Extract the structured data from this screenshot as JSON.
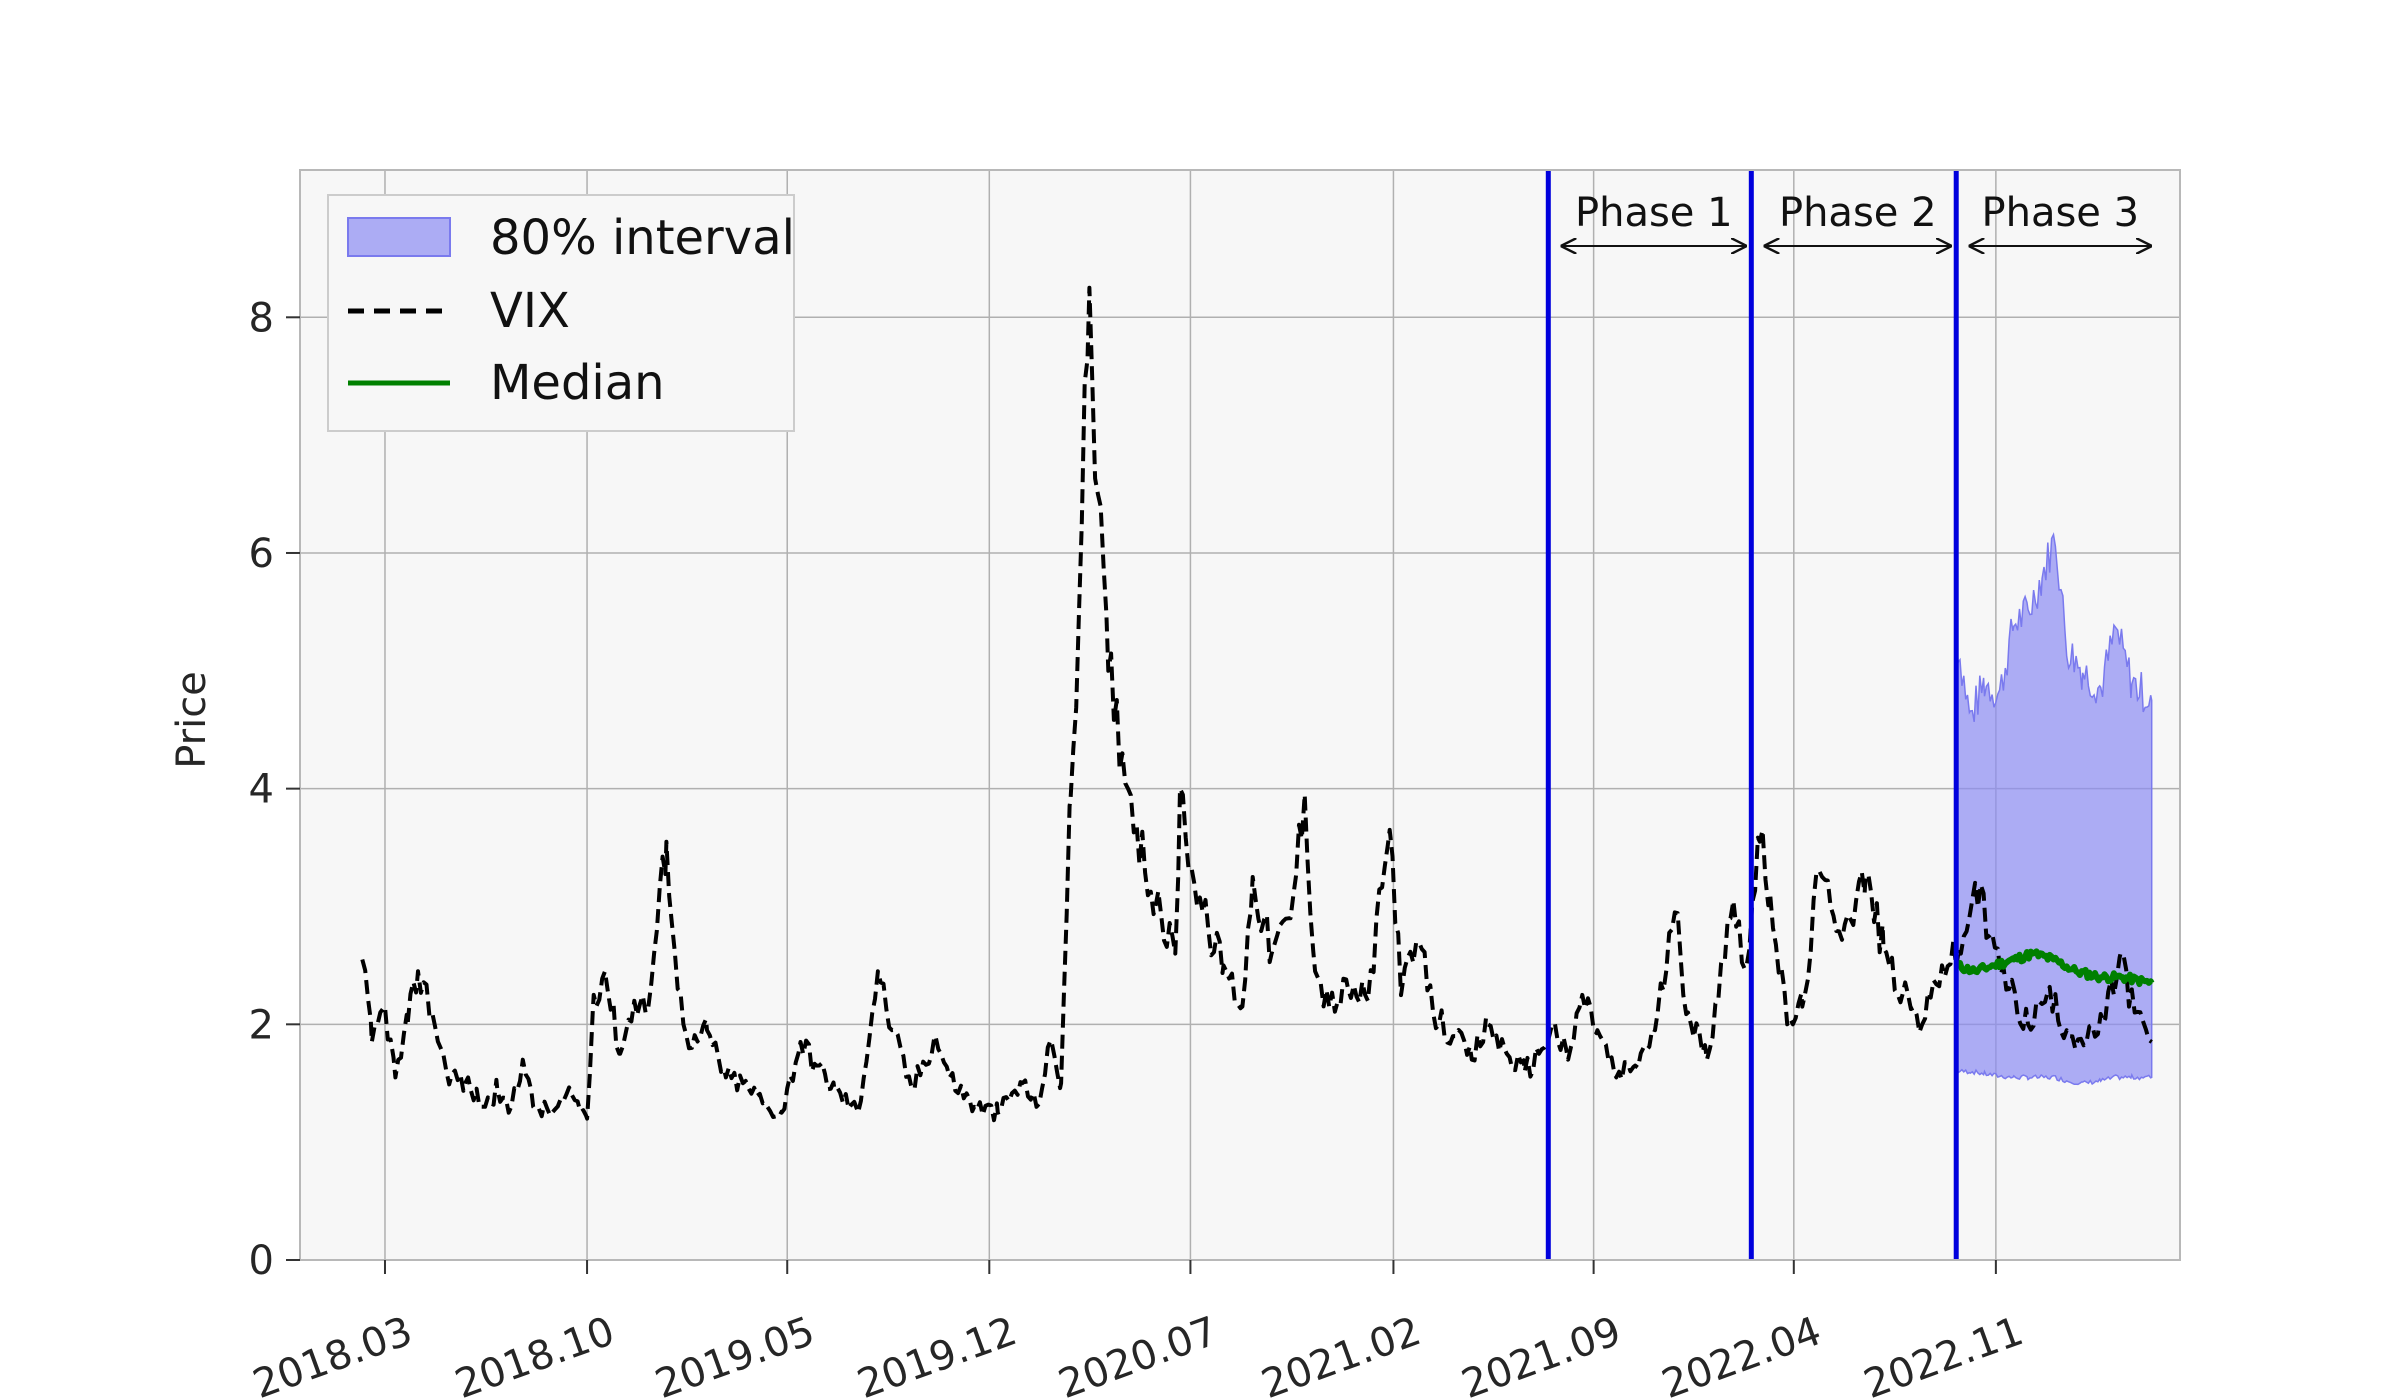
{
  "chart_data": {
    "type": "line",
    "title": "",
    "xlabel": "",
    "ylabel": "Price",
    "ylim": [
      0,
      9.25
    ],
    "xlim": [
      "2017-12-01",
      "2023-05-15"
    ],
    "grid": true,
    "legend_position": "top-left",
    "x_tick_labels": [
      "2018.03",
      "2018.10",
      "2019.05",
      "2019.12",
      "2020.07",
      "2021.02",
      "2021.09",
      "2022.04",
      "2022.11"
    ],
    "y_ticks": [
      0,
      2,
      4,
      6,
      8
    ],
    "legend": {
      "interval_label": "80% interval",
      "vix_label": "VIX",
      "median_label": "Median"
    },
    "phases": [
      {
        "label": "Phase 1",
        "start": "2021-07-15",
        "end": "2022-02-15"
      },
      {
        "label": "Phase 2",
        "start": "2022-02-15",
        "end": "2022-09-20"
      },
      {
        "label": "Phase 3",
        "start": "2022-09-20",
        "end": "2023-04-20"
      }
    ],
    "colors": {
      "background": "#f7f7f7",
      "vix": "#000000",
      "median": "#008000",
      "interval": "#8c8cf2",
      "phase_lines": "#0000dd",
      "grid": "#b0b0b0"
    },
    "series": [
      {
        "name": "VIX",
        "style": "dashed",
        "points": [
          [
            "2018-02-05",
            2.55
          ],
          [
            "2018-02-15",
            1.85
          ],
          [
            "2018-03-01",
            2.15
          ],
          [
            "2018-03-12",
            1.55
          ],
          [
            "2018-03-25",
            2.0
          ],
          [
            "2018-04-05",
            2.45
          ],
          [
            "2018-04-20",
            2.1
          ],
          [
            "2018-05-05",
            1.6
          ],
          [
            "2018-05-25",
            1.5
          ],
          [
            "2018-06-15",
            1.3
          ],
          [
            "2018-06-28",
            1.45
          ],
          [
            "2018-07-10",
            1.25
          ],
          [
            "2018-07-25",
            1.7
          ],
          [
            "2018-08-05",
            1.3
          ],
          [
            "2018-08-25",
            1.25
          ],
          [
            "2018-09-15",
            1.4
          ],
          [
            "2018-10-01",
            1.2
          ],
          [
            "2018-10-08",
            2.25
          ],
          [
            "2018-10-20",
            2.45
          ],
          [
            "2018-11-05",
            1.75
          ],
          [
            "2018-11-20",
            2.2
          ],
          [
            "2018-12-05",
            2.15
          ],
          [
            "2018-12-24",
            3.55
          ],
          [
            "2019-01-05",
            2.3
          ],
          [
            "2019-01-20",
            1.8
          ],
          [
            "2019-02-05",
            1.95
          ],
          [
            "2019-02-25",
            1.55
          ],
          [
            "2019-03-15",
            1.5
          ],
          [
            "2019-04-10",
            1.3
          ],
          [
            "2019-04-25",
            1.25
          ],
          [
            "2019-05-15",
            1.85
          ],
          [
            "2019-06-01",
            1.65
          ],
          [
            "2019-06-20",
            1.45
          ],
          [
            "2019-07-15",
            1.25
          ],
          [
            "2019-08-05",
            2.45
          ],
          [
            "2019-08-20",
            1.95
          ],
          [
            "2019-09-10",
            1.45
          ],
          [
            "2019-10-05",
            1.9
          ],
          [
            "2019-10-20",
            1.55
          ],
          [
            "2019-11-15",
            1.3
          ],
          [
            "2019-12-10",
            1.25
          ],
          [
            "2020-01-05",
            1.5
          ],
          [
            "2020-01-20",
            1.3
          ],
          [
            "2020-02-05",
            1.85
          ],
          [
            "2020-02-15",
            1.5
          ],
          [
            "2020-02-25",
            3.9
          ],
          [
            "2020-03-05",
            5.5
          ],
          [
            "2020-03-16",
            8.25
          ],
          [
            "2020-03-25",
            6.5
          ],
          [
            "2020-04-05",
            5.0
          ],
          [
            "2020-04-20",
            4.3
          ],
          [
            "2020-05-05",
            3.7
          ],
          [
            "2020-05-25",
            3.0
          ],
          [
            "2020-06-15",
            2.6
          ],
          [
            "2020-06-20",
            4.0
          ],
          [
            "2020-07-05",
            3.2
          ],
          [
            "2020-07-20",
            2.8
          ],
          [
            "2020-08-05",
            2.5
          ],
          [
            "2020-08-25",
            2.15
          ],
          [
            "2020-09-05",
            3.25
          ],
          [
            "2020-09-25",
            2.6
          ],
          [
            "2020-10-15",
            2.9
          ],
          [
            "2020-10-30",
            3.95
          ],
          [
            "2020-11-10",
            2.45
          ],
          [
            "2020-11-25",
            2.15
          ],
          [
            "2020-12-15",
            2.3
          ],
          [
            "2021-01-05",
            2.2
          ],
          [
            "2021-01-28",
            3.65
          ],
          [
            "2021-02-10",
            2.3
          ],
          [
            "2021-02-28",
            2.7
          ],
          [
            "2021-03-15",
            2.1
          ],
          [
            "2021-04-05",
            1.9
          ],
          [
            "2021-04-25",
            1.7
          ],
          [
            "2021-05-12",
            2.0
          ],
          [
            "2021-06-01",
            1.75
          ],
          [
            "2021-06-20",
            1.6
          ],
          [
            "2021-07-05",
            1.75
          ],
          [
            "2021-07-19",
            2.0
          ],
          [
            "2021-08-05",
            1.7
          ],
          [
            "2021-08-20",
            2.25
          ],
          [
            "2021-09-05",
            1.95
          ],
          [
            "2021-09-25",
            1.55
          ],
          [
            "2021-10-15",
            1.65
          ],
          [
            "2021-11-05",
            1.95
          ],
          [
            "2021-11-26",
            2.95
          ],
          [
            "2021-12-10",
            2.1
          ],
          [
            "2021-12-30",
            1.7
          ],
          [
            "2022-01-15",
            2.55
          ],
          [
            "2022-01-27",
            3.05
          ],
          [
            "2022-02-10",
            2.5
          ],
          [
            "2022-02-24",
            3.55
          ],
          [
            "2022-03-07",
            3.1
          ],
          [
            "2022-03-25",
            2.0
          ],
          [
            "2022-04-10",
            2.15
          ],
          [
            "2022-04-28",
            3.3
          ],
          [
            "2022-05-10",
            3.0
          ],
          [
            "2022-05-25",
            2.85
          ],
          [
            "2022-06-16",
            3.25
          ],
          [
            "2022-07-05",
            2.65
          ],
          [
            "2022-07-25",
            2.25
          ],
          [
            "2022-08-15",
            2.0
          ],
          [
            "2022-09-05",
            2.5
          ],
          [
            "2022-09-25",
            2.6
          ],
          [
            "2022-10-10",
            3.2
          ],
          [
            "2022-10-25",
            2.75
          ],
          [
            "2022-11-15",
            2.3
          ],
          [
            "2022-12-05",
            2.0
          ],
          [
            "2022-12-25",
            2.25
          ],
          [
            "2023-01-15",
            1.95
          ],
          [
            "2023-02-05",
            1.85
          ],
          [
            "2023-02-25",
            2.05
          ],
          [
            "2023-03-13",
            2.6
          ],
          [
            "2023-03-28",
            2.1
          ],
          [
            "2023-04-15",
            1.85
          ]
        ]
      },
      {
        "name": "Median",
        "style": "solid",
        "points": [
          [
            "2022-09-20",
            2.5
          ],
          [
            "2022-10-10",
            2.45
          ],
          [
            "2022-10-30",
            2.5
          ],
          [
            "2022-11-20",
            2.55
          ],
          [
            "2022-12-10",
            2.6
          ],
          [
            "2023-01-01",
            2.55
          ],
          [
            "2023-01-25",
            2.45
          ],
          [
            "2023-02-20",
            2.4
          ],
          [
            "2023-03-15",
            2.4
          ],
          [
            "2023-04-15",
            2.35
          ]
        ]
      },
      {
        "name": "80% interval",
        "style": "band",
        "points": [
          [
            "2022-09-20",
            1.6,
            5.3
          ],
          [
            "2022-10-05",
            1.6,
            4.6
          ],
          [
            "2022-10-20",
            1.58,
            4.9
          ],
          [
            "2022-11-05",
            1.56,
            4.8
          ],
          [
            "2022-11-20",
            1.55,
            5.4
          ],
          [
            "2022-12-05",
            1.55,
            5.5
          ],
          [
            "2022-12-20",
            1.55,
            5.8
          ],
          [
            "2023-01-03",
            1.55,
            6.15
          ],
          [
            "2023-01-15",
            1.52,
            5.2
          ],
          [
            "2023-02-01",
            1.5,
            5.0
          ],
          [
            "2023-02-20",
            1.52,
            4.85
          ],
          [
            "2023-03-08",
            1.55,
            5.35
          ],
          [
            "2023-03-25",
            1.55,
            4.9
          ],
          [
            "2023-04-15",
            1.55,
            4.75
          ]
        ]
      }
    ]
  }
}
